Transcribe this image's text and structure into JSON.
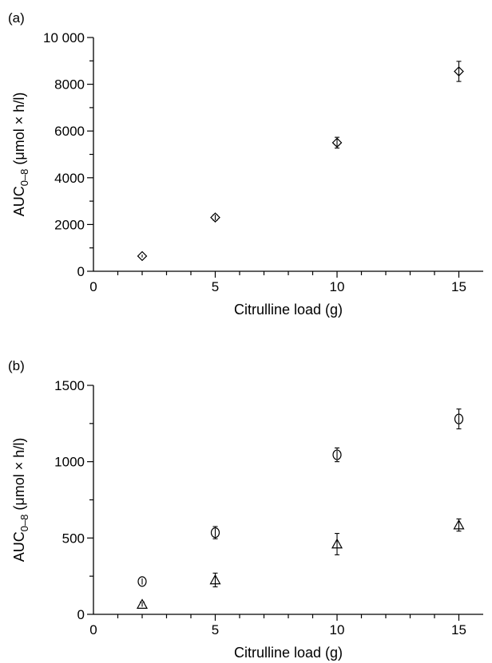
{
  "chart_data": [
    {
      "type": "scatter",
      "panel_label": "(a)",
      "xlabel": "Citrulline load (g)",
      "ylabel": {
        "main": "AUC",
        "sub": "0–8",
        "rest": " (μmol × h/l)"
      },
      "xlim": [
        0,
        16
      ],
      "ylim": [
        0,
        10000
      ],
      "xticks": [
        0,
        5,
        10,
        15
      ],
      "xtick_labels": [
        "0",
        "5",
        "10",
        "15"
      ],
      "yticks": [
        0,
        2000,
        4000,
        6000,
        8000,
        10000
      ],
      "ytick_labels": [
        "0",
        "2000",
        "4000",
        "6000",
        "8000",
        "10 000"
      ],
      "grid": false,
      "series": [
        {
          "marker": "diamond",
          "x": [
            2,
            5,
            10,
            15
          ],
          "y": [
            650,
            2300,
            5500,
            8550
          ],
          "err": [
            60,
            120,
            230,
            430
          ]
        }
      ]
    },
    {
      "type": "scatter",
      "panel_label": "(b)",
      "xlabel": "Citrulline load (g)",
      "ylabel": {
        "main": "AUC",
        "sub": "0–8",
        "rest": " (μmol × h/l)"
      },
      "xlim": [
        0,
        16
      ],
      "ylim": [
        0,
        1500
      ],
      "xticks": [
        0,
        5,
        10,
        15
      ],
      "xtick_labels": [
        "0",
        "5",
        "10",
        "15"
      ],
      "yticks": [
        0,
        500,
        1000,
        1500
      ],
      "ytick_labels": [
        "0",
        "500",
        "1000",
        "1500"
      ],
      "grid": false,
      "series": [
        {
          "marker": "circle",
          "x": [
            2,
            5,
            10,
            15
          ],
          "y": [
            215,
            535,
            1045,
            1280
          ],
          "err": [
            20,
            40,
            45,
            65
          ]
        },
        {
          "marker": "triangle",
          "x": [
            2,
            5,
            10,
            15
          ],
          "y": [
            65,
            225,
            460,
            585
          ],
          "err": [
            15,
            45,
            70,
            40
          ]
        }
      ]
    }
  ]
}
